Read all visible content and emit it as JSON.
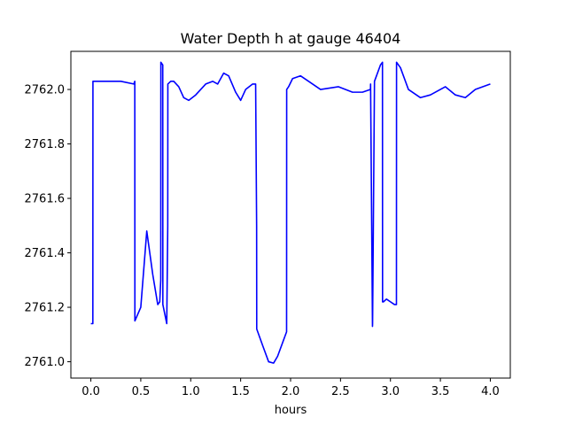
{
  "chart_data": {
    "type": "line",
    "title": "Water Depth h at gauge 46404",
    "xlabel": "hours",
    "ylabel": "",
    "xlim": [
      -0.2,
      4.2
    ],
    "ylim": [
      2760.94,
      2762.14
    ],
    "xticks": [
      0.0,
      0.5,
      1.0,
      1.5,
      2.0,
      2.5,
      3.0,
      3.5,
      4.0
    ],
    "xtick_labels": [
      "0.0",
      "0.5",
      "1.0",
      "1.5",
      "2.0",
      "2.5",
      "3.0",
      "3.5",
      "4.0"
    ],
    "yticks": [
      2761.0,
      2761.2,
      2761.4,
      2761.6,
      2761.8,
      2762.0
    ],
    "ytick_labels": [
      "2761.0",
      "2761.2",
      "2761.4",
      "2761.6",
      "2761.8",
      "2762.0"
    ],
    "grid": false,
    "series": [
      {
        "color": "#0000ff",
        "x": [
          0.0,
          0.02,
          0.021,
          0.3,
          0.43,
          0.44,
          0.441,
          0.5,
          0.56,
          0.62,
          0.67,
          0.69,
          0.7,
          0.701,
          0.72,
          0.721,
          0.76,
          0.77,
          0.771,
          0.8,
          0.83,
          0.88,
          0.93,
          0.98,
          1.05,
          1.15,
          1.22,
          1.27,
          1.33,
          1.38,
          1.45,
          1.5,
          1.55,
          1.62,
          1.65,
          1.66,
          1.661,
          1.72,
          1.78,
          1.83,
          1.87,
          1.93,
          1.96,
          1.961,
          1.98,
          2.02,
          2.1,
          2.18,
          2.3,
          2.48,
          2.62,
          2.72,
          2.8,
          2.801,
          2.82,
          2.821,
          2.84,
          2.86,
          2.9,
          2.92,
          2.921,
          2.93,
          2.96,
          3.0,
          3.04,
          3.06,
          3.061,
          3.1,
          3.18,
          3.3,
          3.4,
          3.55,
          3.65,
          3.75,
          3.85,
          4.0
        ],
        "y": [
          2761.14,
          2761.14,
          2762.03,
          2762.03,
          2762.02,
          2762.03,
          2761.15,
          2761.2,
          2761.48,
          2761.32,
          2761.21,
          2761.22,
          2761.3,
          2762.1,
          2762.09,
          2761.21,
          2761.14,
          2761.5,
          2762.02,
          2762.03,
          2762.03,
          2762.01,
          2761.97,
          2761.96,
          2761.98,
          2762.02,
          2762.03,
          2762.02,
          2762.06,
          2762.05,
          2761.99,
          2761.96,
          2762.0,
          2762.02,
          2762.02,
          2761.5,
          2761.12,
          2761.06,
          2761.0,
          2760.995,
          2761.02,
          2761.08,
          2761.11,
          2762.0,
          2762.01,
          2762.04,
          2762.05,
          2762.03,
          2762.0,
          2762.01,
          2761.99,
          2761.99,
          2762.0,
          2762.02,
          2761.13,
          2761.14,
          2762.03,
          2762.05,
          2762.09,
          2762.1,
          2761.22,
          2761.22,
          2761.23,
          2761.22,
          2761.21,
          2761.21,
          2762.1,
          2762.08,
          2762.0,
          2761.97,
          2761.98,
          2762.01,
          2761.98,
          2761.97,
          2762.0,
          2762.02
        ]
      }
    ]
  }
}
